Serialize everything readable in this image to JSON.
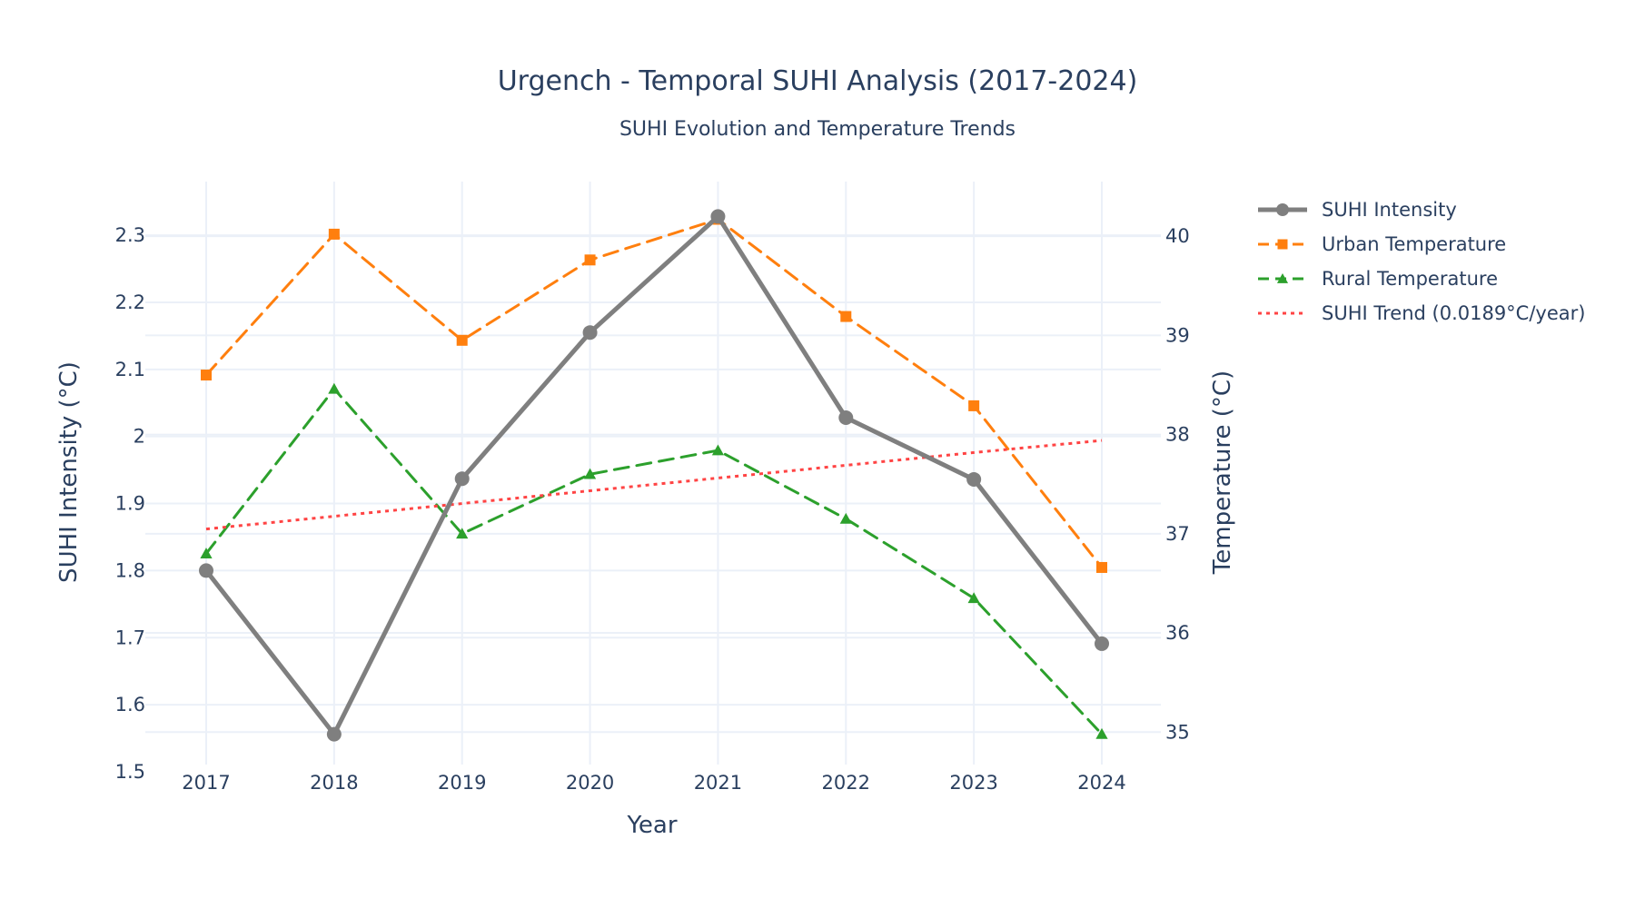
{
  "chart_data": {
    "type": "line",
    "title": "Urgench - Temporal SUHI Analysis (2017-2024)",
    "subtitle": "SUHI Evolution and Temperature Trends",
    "xlabel": "Year",
    "ylabel": "SUHI Intensity (°C)",
    "y2label": "Temperature (°C)",
    "x": [
      2017,
      2018,
      2019,
      2020,
      2021,
      2022,
      2023,
      2024
    ],
    "x_ticks": [
      "2017",
      "2018",
      "2019",
      "2020",
      "2021",
      "2022",
      "2023",
      "2024"
    ],
    "ylim": [
      1.5,
      2.38
    ],
    "y_ticks": [
      1.5,
      1.6,
      1.7,
      1.8,
      1.9,
      2.0,
      2.1,
      2.2,
      2.3
    ],
    "y_tick_labels": [
      "1.5",
      "1.6",
      "1.7",
      "1.8",
      "1.9",
      "2",
      "2.1",
      "2.2",
      "2.3"
    ],
    "y2lim": [
      34.6,
      40.55
    ],
    "y2_ticks": [
      35,
      36,
      37,
      38,
      39,
      40
    ],
    "y2_tick_labels": [
      "35",
      "36",
      "37",
      "38",
      "39",
      "40"
    ],
    "grid": true,
    "legend_position": "top-right-outside",
    "series": [
      {
        "name": "SUHI Intensity",
        "axis": "y",
        "values": [
          1.8,
          1.556,
          1.937,
          2.155,
          2.328,
          2.028,
          1.936,
          1.691
        ],
        "color": "#7f7f7f",
        "dash": "solid",
        "marker": "circle",
        "width": 5
      },
      {
        "name": "Urban Temperature",
        "axis": "y2",
        "values": [
          38.6,
          40.02,
          38.95,
          39.76,
          40.17,
          39.19,
          38.29,
          36.66
        ],
        "color": "#ff7f0e",
        "dash": "dashed",
        "marker": "square",
        "width": 3
      },
      {
        "name": "Rural Temperature",
        "axis": "y2",
        "values": [
          36.8,
          38.46,
          37.0,
          37.6,
          37.84,
          37.15,
          36.35,
          34.98
        ],
        "color": "#2ca02c",
        "dash": "dashed",
        "marker": "triangle",
        "width": 3
      },
      {
        "name": "SUHI Trend (0.0189°C/year)",
        "axis": "y",
        "values": [
          1.862,
          1.881,
          1.9,
          1.919,
          1.938,
          1.957,
          1.976,
          1.994
        ],
        "color": "#ff4444",
        "dash": "dotted",
        "marker": "none",
        "width": 3
      }
    ]
  }
}
